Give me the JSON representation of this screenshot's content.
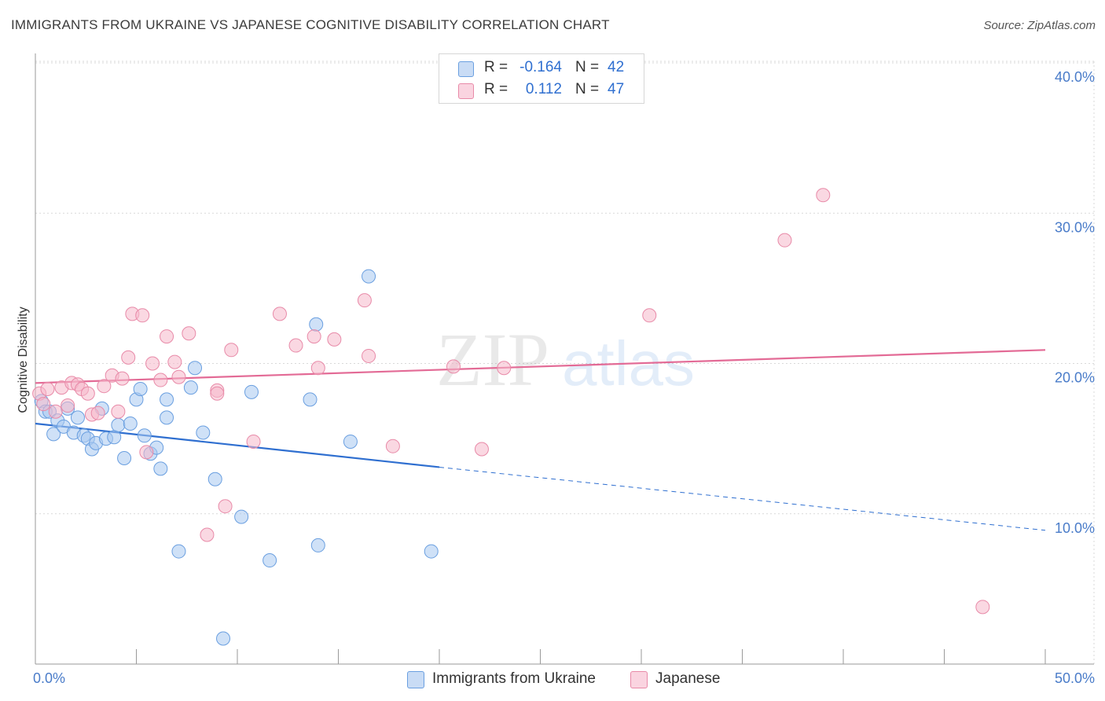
{
  "title": "IMMIGRANTS FROM UKRAINE VS JAPANESE COGNITIVE DISABILITY CORRELATION CHART",
  "source": "Source: ZipAtlas.com",
  "watermark": {
    "zip": "ZIP",
    "atlas": "atlas"
  },
  "legend": {
    "rows": [
      {
        "r_label": "R =",
        "r_value": "-0.164",
        "n_label": "N =",
        "n_value": "42",
        "color": "#a8c8f0"
      },
      {
        "r_label": "R =",
        "r_value": "0.112",
        "n_label": "N =",
        "n_value": "47",
        "color": "#f5b8cb"
      }
    ]
  },
  "bottom_legend": {
    "ukraine": "Immigrants from Ukraine",
    "japanese": "Japanese"
  },
  "colors": {
    "ukraine_fill": "#a8c8f0",
    "ukraine_stroke": "#6a9fe0",
    "ukraine_line": "#2f6fd0",
    "japanese_fill": "#f5b8cb",
    "japanese_stroke": "#e88aa8",
    "japanese_line": "#e36b96",
    "axis_text": "#4a7cc9",
    "grid": "#d9d9d9"
  },
  "chart_data": {
    "type": "scatter",
    "title": "IMMIGRANTS FROM UKRAINE VS JAPANESE COGNITIVE DISABILITY CORRELATION CHART",
    "xlabel": "",
    "ylabel": "Cognitive Disability",
    "xlim": [
      0,
      50
    ],
    "ylim": [
      0,
      40
    ],
    "x_tick_labels": {
      "min": "0.0%",
      "max": "50.0%"
    },
    "y_ticks": [
      {
        "value": 10,
        "label": "10.0%"
      },
      {
        "value": 20,
        "label": "20.0%"
      },
      {
        "value": 30,
        "label": "30.0%"
      },
      {
        "value": 40,
        "label": "40.0%"
      }
    ],
    "series": [
      {
        "name": "Immigrants from Ukraine",
        "points": [
          [
            0.3,
            17.5
          ],
          [
            0.5,
            16.8
          ],
          [
            0.7,
            16.8
          ],
          [
            0.9,
            15.3
          ],
          [
            1.1,
            16.2
          ],
          [
            1.4,
            15.8
          ],
          [
            1.6,
            17.0
          ],
          [
            1.9,
            15.4
          ],
          [
            2.1,
            16.4
          ],
          [
            2.4,
            15.2
          ],
          [
            2.6,
            15.0
          ],
          [
            2.8,
            14.3
          ],
          [
            3.0,
            14.7
          ],
          [
            3.3,
            17.0
          ],
          [
            3.5,
            15.0
          ],
          [
            3.9,
            15.1
          ],
          [
            4.1,
            15.9
          ],
          [
            4.4,
            13.7
          ],
          [
            4.7,
            16.0
          ],
          [
            5.0,
            17.6
          ],
          [
            5.2,
            18.3
          ],
          [
            5.4,
            15.2
          ],
          [
            5.7,
            14.0
          ],
          [
            6.0,
            14.4
          ],
          [
            6.2,
            13.0
          ],
          [
            6.5,
            17.6
          ],
          [
            6.5,
            16.4
          ],
          [
            7.1,
            7.5
          ],
          [
            7.7,
            18.4
          ],
          [
            7.9,
            19.7
          ],
          [
            8.3,
            15.4
          ],
          [
            8.9,
            12.3
          ],
          [
            9.3,
            1.7
          ],
          [
            10.2,
            9.8
          ],
          [
            10.7,
            18.1
          ],
          [
            11.6,
            6.9
          ],
          [
            13.6,
            17.6
          ],
          [
            13.9,
            22.6
          ],
          [
            14.0,
            7.9
          ],
          [
            15.6,
            14.8
          ],
          [
            16.5,
            25.8
          ],
          [
            19.6,
            7.5
          ]
        ]
      },
      {
        "name": "Japanese",
        "points": [
          [
            0.2,
            18.0
          ],
          [
            0.4,
            17.3
          ],
          [
            0.6,
            18.3
          ],
          [
            1.0,
            16.8
          ],
          [
            1.3,
            18.4
          ],
          [
            1.6,
            17.2
          ],
          [
            1.8,
            18.7
          ],
          [
            2.1,
            18.6
          ],
          [
            2.3,
            18.3
          ],
          [
            2.6,
            18.0
          ],
          [
            2.8,
            16.6
          ],
          [
            3.1,
            16.7
          ],
          [
            3.4,
            18.5
          ],
          [
            3.8,
            19.2
          ],
          [
            4.1,
            16.8
          ],
          [
            4.3,
            19.0
          ],
          [
            4.6,
            20.4
          ],
          [
            4.8,
            23.3
          ],
          [
            5.3,
            23.2
          ],
          [
            5.5,
            14.1
          ],
          [
            5.8,
            20.0
          ],
          [
            6.2,
            18.9
          ],
          [
            6.5,
            21.8
          ],
          [
            6.9,
            20.1
          ],
          [
            7.1,
            19.1
          ],
          [
            7.6,
            22.0
          ],
          [
            8.5,
            8.6
          ],
          [
            9.0,
            18.2
          ],
          [
            9.0,
            18.0
          ],
          [
            9.4,
            10.5
          ],
          [
            9.7,
            20.9
          ],
          [
            10.8,
            14.8
          ],
          [
            12.1,
            23.3
          ],
          [
            12.9,
            21.2
          ],
          [
            13.8,
            21.8
          ],
          [
            14.0,
            19.7
          ],
          [
            14.8,
            21.6
          ],
          [
            16.3,
            24.2
          ],
          [
            16.5,
            20.5
          ],
          [
            17.7,
            14.5
          ],
          [
            20.7,
            19.8
          ],
          [
            22.1,
            14.3
          ],
          [
            23.2,
            19.7
          ],
          [
            30.4,
            23.2
          ],
          [
            37.1,
            28.2
          ],
          [
            39.0,
            31.2
          ],
          [
            46.9,
            3.8
          ]
        ]
      }
    ],
    "trend_lines": [
      {
        "series": "Immigrants from Ukraine",
        "solid": [
          [
            0,
            16.0
          ],
          [
            20,
            13.1
          ]
        ],
        "dashed": [
          [
            20,
            13.1
          ],
          [
            50,
            8.9
          ]
        ]
      },
      {
        "series": "Japanese",
        "solid": [
          [
            0,
            18.7
          ],
          [
            50,
            20.9
          ]
        ]
      }
    ]
  }
}
